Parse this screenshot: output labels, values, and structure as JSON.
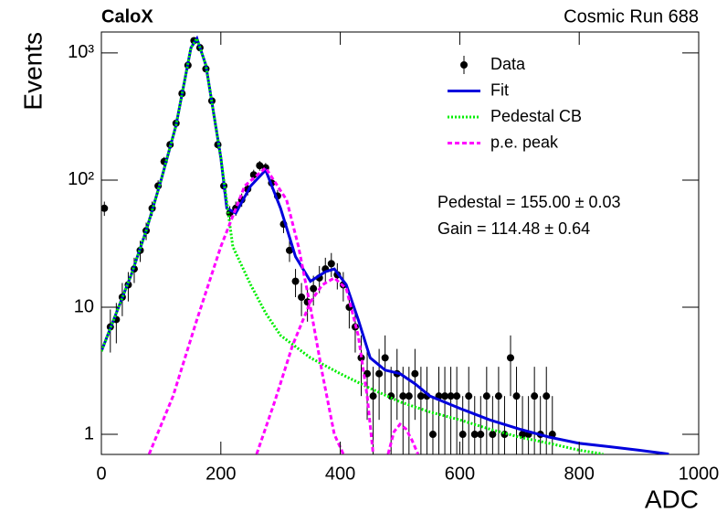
{
  "chart_data": {
    "type": "histogram-fit",
    "title": "CaloX",
    "subtitle": "Cosmic Run 688",
    "x_label": "ADC",
    "y_label": "Events",
    "annotations": [
      "Pedestal = 155.00 ± 0.03",
      "Gain = 114.48 ± 0.64"
    ],
    "xlim": [
      0,
      1000
    ],
    "xticks": [
      0,
      200,
      400,
      600,
      800,
      1000
    ],
    "ylim": [
      0.695,
      1462
    ],
    "log_y": true,
    "yticks": [
      1,
      10,
      {
        "value": 100,
        "label": "10²"
      },
      {
        "value": 1000,
        "label": "10³"
      }
    ],
    "legend": "top-right",
    "series": [
      {
        "name": "Data",
        "color": "#000000",
        "style": "points",
        "x": [
          5,
          15,
          25,
          35,
          45,
          55,
          65,
          75,
          85,
          95,
          105,
          115,
          125,
          135,
          145,
          155,
          165,
          175,
          185,
          195,
          205,
          215,
          225,
          235,
          245,
          255,
          265,
          275,
          285,
          295,
          305,
          315,
          325,
          335,
          345,
          355,
          365,
          375,
          385,
          395,
          405,
          415,
          425,
          435,
          445,
          455,
          465,
          475,
          485,
          495,
          505,
          515,
          525,
          535,
          545,
          555,
          565,
          575,
          585,
          595,
          605,
          615,
          625,
          635,
          645,
          655,
          665,
          675,
          685,
          695,
          705,
          715,
          725,
          735,
          745,
          755
        ],
        "values": [
          60,
          7,
          8,
          12,
          15,
          20,
          28,
          40,
          60,
          90,
          140,
          190,
          280,
          480,
          800,
          1250,
          1100,
          750,
          420,
          190,
          90,
          55,
          60,
          70,
          85,
          110,
          130,
          125,
          95,
          75,
          45,
          28,
          16,
          12,
          11,
          14,
          17,
          20,
          22,
          18,
          15,
          10,
          7,
          4,
          3,
          2,
          3,
          4,
          2,
          3,
          2,
          2,
          3,
          2,
          2,
          1,
          2,
          2,
          2,
          2,
          1,
          2,
          1,
          1,
          2,
          1,
          2,
          1,
          4,
          2,
          1,
          1,
          2,
          1,
          2,
          1
        ],
        "errors": [
          7.7,
          2.6,
          2.8,
          3.5,
          3.9,
          4.5,
          5.3,
          6.3,
          7.7,
          9.5,
          11.8,
          13.8,
          16.7,
          21.9,
          28.3,
          35.4,
          33.2,
          27.4,
          20.5,
          13.8,
          9.5,
          7.4,
          7.7,
          8.4,
          9.2,
          10.5,
          11.4,
          11.2,
          9.7,
          8.7,
          6.7,
          5.3,
          4,
          3.5,
          3.3,
          3.7,
          4.1,
          4.5,
          4.7,
          4.2,
          3.9,
          3.2,
          2.6,
          2,
          1.7,
          1.4,
          1.7,
          2,
          1.4,
          1.7,
          1.4,
          1.4,
          1.7,
          1.4,
          1.4,
          1,
          1.4,
          1.4,
          1.4,
          1.4,
          1,
          1.4,
          1,
          1,
          1.4,
          1,
          1.4,
          1,
          2,
          1.4,
          1,
          1,
          1.4,
          1,
          1.4,
          1
        ]
      },
      {
        "name": "Fit",
        "color": "#0000dd",
        "style": "solid",
        "segments": [
          {
            "x": [
              0,
              25,
              50,
              75,
              100,
              125,
              150,
              160,
              175,
              200,
              210,
              225,
              250,
              275,
              300,
              325,
              350,
              375,
              390,
              410,
              430,
              450,
              475,
              500,
              525,
              550,
              600,
              650,
              700,
              750,
              800,
              850,
              900,
              950
            ],
            "values": [
              4.5,
              9,
              18,
              40,
              100,
              270,
              1100,
              1300,
              800,
              150,
              60,
              55,
              90,
              120,
              60,
              25,
              16,
              19,
              20,
              15,
              8,
              4,
              3.2,
              3,
              2.5,
              2,
              1.6,
              1.3,
              1.1,
              0.95,
              0.85,
              0.8,
              0.75,
              0.7
            ]
          }
        ]
      },
      {
        "name": "Pedestal CB",
        "color": "#00ee00",
        "style": "dotted",
        "segments": [
          {
            "x": [
              0,
              25,
              50,
              75,
              100,
              125,
              150,
              160,
              175,
              200,
              220,
              250,
              275,
              300,
              350,
              400,
              450,
              500,
              550,
              600,
              650,
              700,
              750,
              800,
              840
            ],
            "values": [
              4.5,
              9,
              18,
              40,
              100,
              270,
              1100,
              1300,
              800,
              150,
              30,
              15,
              9,
              6,
              4,
              3,
              2.3,
              1.8,
              1.5,
              1.3,
              1.1,
              0.95,
              0.85,
              0.75,
              0.7
            ]
          }
        ]
      },
      {
        "name": "p.e. peak",
        "color": "#ff00ff",
        "style": "dashed",
        "segments": [
          {
            "x": [
              80,
              120,
              160,
              200,
              240,
              275,
              310,
              330,
              350,
              370,
              390,
              405
            ],
            "values": [
              0.7,
              2,
              8,
              30,
              90,
              125,
              70,
              30,
              10,
              3,
              1,
              0.7
            ]
          },
          {
            "x": [
              260,
              290,
              320,
              350,
              370,
              390,
              410,
              430,
              445,
              455
            ],
            "values": [
              0.7,
              1.8,
              5,
              11,
              15,
              17,
              14,
              6,
              2,
              0.7
            ]
          },
          {
            "x": [
              480,
              490,
              500,
              510,
              520,
              530
            ],
            "values": [
              0.7,
              1.05,
              1.2,
              1.1,
              0.9,
              0.7
            ]
          }
        ]
      }
    ]
  }
}
